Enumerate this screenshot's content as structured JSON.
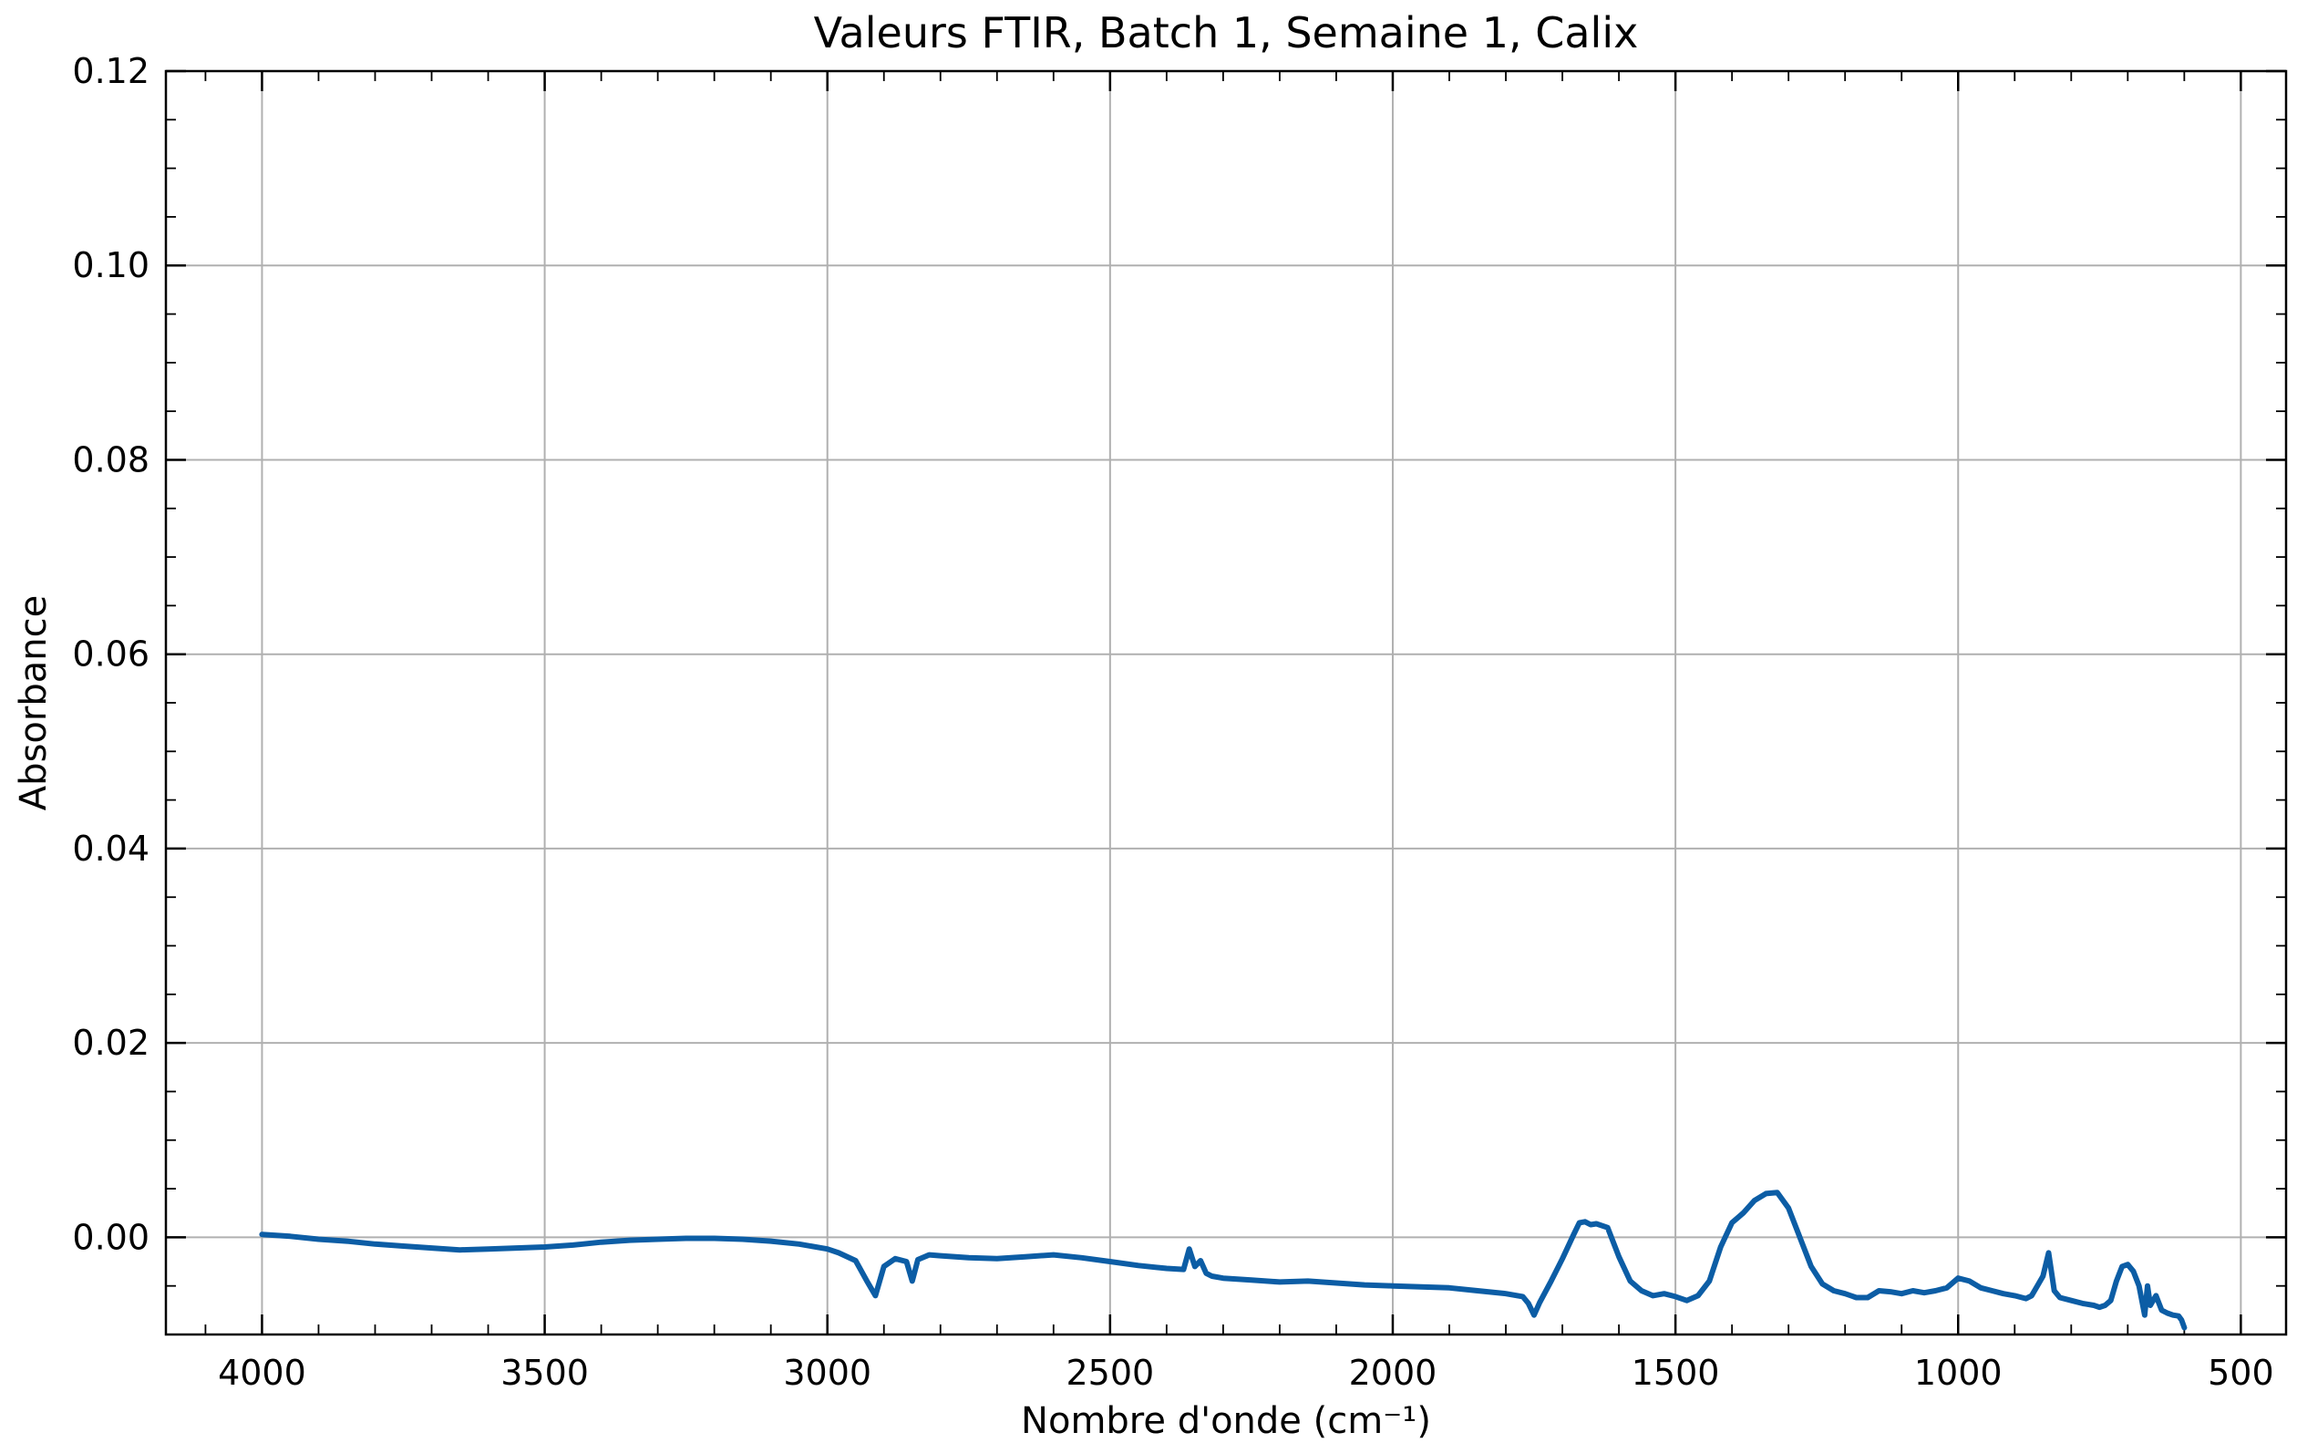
{
  "chart_data": {
    "type": "line",
    "title": "Valeurs FTIR, Batch 1, Semaine 1, Calix",
    "xlabel": "Nombre d'onde (cm⁻¹)",
    "ylabel": "Absorbance",
    "xlim": [
      4170,
      420
    ],
    "ylim": [
      -0.01,
      0.12
    ],
    "x_reversed": true,
    "grid": true,
    "line_color": "#0C5DA5",
    "x_ticks": [
      4000,
      3500,
      3000,
      2500,
      2000,
      1500,
      1000,
      500
    ],
    "x_tick_labels": [
      "4000",
      "3500",
      "3000",
      "2500",
      "2000",
      "1500",
      "1000",
      "500"
    ],
    "y_ticks": [
      0.0,
      0.02,
      0.04,
      0.06,
      0.08,
      0.1,
      0.12
    ],
    "y_tick_labels": [
      "0.00",
      "0.02",
      "0.04",
      "0.06",
      "0.08",
      "0.10",
      "0.12"
    ],
    "series": [
      {
        "x": [
          4000,
          3950,
          3900,
          3850,
          3800,
          3750,
          3700,
          3650,
          3600,
          3550,
          3500,
          3450,
          3400,
          3350,
          3300,
          3250,
          3200,
          3150,
          3100,
          3050,
          3000,
          2980,
          2950,
          2930,
          2915,
          2900,
          2880,
          2860,
          2850,
          2840,
          2820,
          2800,
          2750,
          2700,
          2650,
          2600,
          2550,
          2500,
          2450,
          2400,
          2370,
          2360,
          2350,
          2340,
          2330,
          2320,
          2300,
          2250,
          2200,
          2150,
          2100,
          2050,
          2000,
          1950,
          1900,
          1850,
          1800,
          1770,
          1760,
          1750,
          1740,
          1720,
          1700,
          1680,
          1670,
          1660,
          1650,
          1640,
          1620,
          1600,
          1580,
          1560,
          1540,
          1520,
          1500,
          1480,
          1460,
          1440,
          1420,
          1400,
          1380,
          1360,
          1340,
          1320,
          1300,
          1280,
          1260,
          1240,
          1220,
          1200,
          1180,
          1160,
          1140,
          1120,
          1100,
          1080,
          1060,
          1040,
          1020,
          1000,
          980,
          960,
          940,
          920,
          900,
          880,
          870,
          860,
          850,
          840,
          830,
          820,
          800,
          780,
          760,
          750,
          740,
          730,
          720,
          710,
          700,
          690,
          680,
          670,
          665,
          660,
          650,
          640,
          630,
          620,
          610,
          605,
          600
        ],
        "y": [
          0.0003,
          0.0001,
          -0.0002,
          -0.0004,
          -0.0007,
          -0.0009,
          -0.0011,
          -0.0013,
          -0.0012,
          -0.0011,
          -0.001,
          -0.0008,
          -0.0005,
          -0.0003,
          -0.0002,
          -0.0001,
          -0.0001,
          -0.0002,
          -0.0004,
          -0.0007,
          -0.0012,
          -0.0016,
          -0.0024,
          -0.0045,
          -0.006,
          -0.003,
          -0.0022,
          -0.0025,
          -0.0045,
          -0.0023,
          -0.0018,
          -0.0019,
          -0.0021,
          -0.0022,
          -0.002,
          -0.0018,
          -0.0021,
          -0.0025,
          -0.0029,
          -0.0032,
          -0.0033,
          -0.0012,
          -0.003,
          -0.0024,
          -0.0037,
          -0.004,
          -0.0042,
          -0.0044,
          -0.0046,
          -0.0045,
          -0.0047,
          -0.0049,
          -0.005,
          -0.0051,
          -0.0052,
          -0.0055,
          -0.0058,
          -0.0061,
          -0.0068,
          -0.008,
          -0.0067,
          -0.0045,
          -0.0022,
          0.0003,
          0.0015,
          0.0016,
          0.0013,
          0.0014,
          0.001,
          -0.002,
          -0.0045,
          -0.0055,
          -0.006,
          -0.0058,
          -0.0061,
          -0.0065,
          -0.006,
          -0.0045,
          -0.001,
          0.0015,
          0.0025,
          0.0038,
          0.0045,
          0.0046,
          0.003,
          0.0,
          -0.003,
          -0.0048,
          -0.0055,
          -0.0058,
          -0.0062,
          -0.0062,
          -0.0055,
          -0.0056,
          -0.0058,
          -0.0055,
          -0.0057,
          -0.0055,
          -0.0052,
          -0.0042,
          -0.0045,
          -0.0052,
          -0.0055,
          -0.0058,
          -0.006,
          -0.0063,
          -0.006,
          -0.005,
          -0.004,
          -0.0016,
          -0.0055,
          -0.0062,
          -0.0065,
          -0.0068,
          -0.007,
          -0.0072,
          -0.007,
          -0.0065,
          -0.0045,
          -0.003,
          -0.0028,
          -0.0035,
          -0.005,
          -0.008,
          -0.005,
          -0.007,
          -0.006,
          -0.0075,
          -0.0078,
          -0.008,
          -0.0081,
          -0.0085,
          -0.0093
        ]
      }
    ]
  }
}
